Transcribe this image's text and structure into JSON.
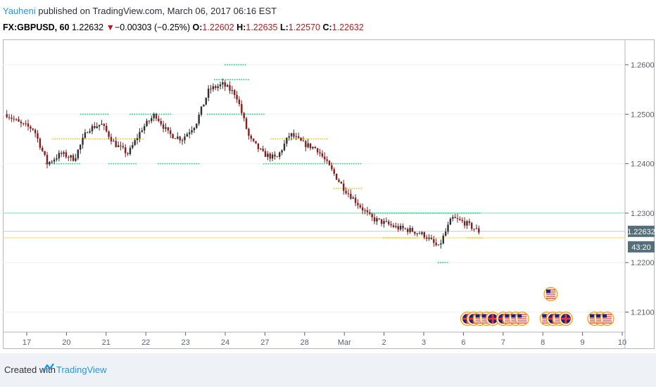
{
  "header": {
    "author": "Yauheni",
    "published_text": " published on TradingView.com, March 06, 2017 06:16 EST",
    "symbol": "FX:GBPUSD, 60",
    "last": "1.22632",
    "change": "−0.00303 (−0.25%)",
    "o_label": "O:",
    "o_value": "1.22602",
    "h_label": "H:",
    "h_value": "1.22635",
    "l_label": "L:",
    "l_value": "1.22570",
    "c_label": "C:",
    "c_value": "1.22632"
  },
  "footer": {
    "created_with": "Created with",
    "brand": "TradingView"
  },
  "colors": {
    "up": "#2e2e2e",
    "down": "#8b1a1a",
    "resistance": "#00e676",
    "support": "#ffc107",
    "green_line": "#69f0ae",
    "yellow_line": "#ffd54f",
    "price_tag": "#546e7a",
    "axis": "#5d606b"
  },
  "chart_data": {
    "type": "candlestick",
    "symbol": "FX:GBPUSD",
    "interval": "60",
    "x_tick_labels": [
      "17",
      "20",
      "21",
      "22",
      "23",
      "24",
      "27",
      "28",
      "Mar",
      "2",
      "3",
      "6",
      "7",
      "8",
      "9",
      "10"
    ],
    "y_tick_labels": [
      "1.26000",
      "1.25000",
      "1.24000",
      "1.23000",
      "1.22000",
      "1.21000"
    ],
    "ylim": [
      1.201,
      1.265
    ],
    "approx_hourly_close_path": [
      {
        "day": "17",
        "close": 1.25
      },
      {
        "day": "17",
        "close": 1.248
      },
      {
        "day": "17",
        "close": 1.247
      },
      {
        "day": "20",
        "close": 1.24
      },
      {
        "day": "20",
        "close": 1.242
      },
      {
        "day": "20",
        "close": 1.241
      },
      {
        "day": "21",
        "close": 1.247
      },
      {
        "day": "21",
        "close": 1.248
      },
      {
        "day": "21",
        "close": 1.244
      },
      {
        "day": "22",
        "close": 1.242
      },
      {
        "day": "22",
        "close": 1.247
      },
      {
        "day": "22",
        "close": 1.25
      },
      {
        "day": "23",
        "close": 1.246
      },
      {
        "day": "23",
        "close": 1.245
      },
      {
        "day": "23",
        "close": 1.248
      },
      {
        "day": "24",
        "close": 1.255
      },
      {
        "day": "24",
        "close": 1.256
      },
      {
        "day": "24",
        "close": 1.254
      },
      {
        "day": "27",
        "close": 1.245
      },
      {
        "day": "27",
        "close": 1.242
      },
      {
        "day": "27",
        "close": 1.241
      },
      {
        "day": "28",
        "close": 1.246
      },
      {
        "day": "28",
        "close": 1.244
      },
      {
        "day": "28",
        "close": 1.243
      },
      {
        "day": "Mar",
        "close": 1.239
      },
      {
        "day": "Mar",
        "close": 1.235
      },
      {
        "day": "Mar",
        "close": 1.232
      },
      {
        "day": "2",
        "close": 1.229
      },
      {
        "day": "2",
        "close": 1.228
      },
      {
        "day": "2",
        "close": 1.227
      },
      {
        "day": "3",
        "close": 1.2265
      },
      {
        "day": "3",
        "close": 1.2255
      },
      {
        "day": "3",
        "close": 1.223
      },
      {
        "day": "6",
        "close": 1.229
      },
      {
        "day": "6",
        "close": 1.228
      },
      {
        "day": "6",
        "close": 1.2263
      }
    ],
    "horizontal_lines": [
      {
        "price": 1.23,
        "color": "#69f0ae"
      },
      {
        "price": 1.22632,
        "color": "#c5cbd3"
      },
      {
        "price": 1.225,
        "color": "#ffd54f"
      }
    ],
    "price_label": "1.22632",
    "countdown_label": "43:20",
    "event_flags": [
      {
        "day_index": 11.4,
        "flags": [
          "UK",
          "UK",
          "US",
          "US",
          "UK"
        ]
      },
      {
        "day_index": 12.3,
        "flags": [
          "UK",
          "US",
          "US",
          "US"
        ]
      },
      {
        "day_index": 13.4,
        "flags": [
          "US",
          "UK",
          "US",
          "UK"
        ]
      },
      {
        "day_index": 13.5,
        "flags": [
          "US"
        ],
        "row": 1
      },
      {
        "day_index": 14.6,
        "flags": [
          "US",
          "US",
          "US"
        ]
      }
    ],
    "grid": true
  }
}
